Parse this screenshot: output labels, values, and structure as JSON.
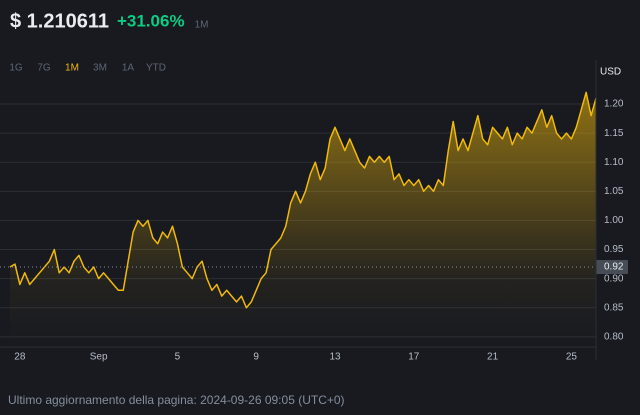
{
  "chart_data": {
    "type": "area",
    "title": "$ 1.210611",
    "change": "+31.06%",
    "period": "1M",
    "periods": [
      "1G",
      "7G",
      "1M",
      "3M",
      "1A",
      "YTD"
    ],
    "selected_period": 2,
    "y_axis_label": "USD",
    "footer": "Ultimo aggiornamento della pagina: 2024-09-26 09:05 (UTC+0)",
    "color": "#f0b90b",
    "grid": true,
    "reference_line": 0.92,
    "ylim": [
      0.786,
      1.2275
    ],
    "yticks": [
      {
        "value": 0.8,
        "label": "0.80"
      },
      0.85,
      {
        "value": 0.9,
        "label": "0.90"
      },
      0.95,
      {
        "value": 1.0,
        "label": "1.00"
      },
      1.05,
      {
        "value": 1.1,
        "label": "1.10"
      },
      1.15,
      {
        "value": 1.2,
        "label": "1.20"
      }
    ],
    "categories": [
      null,
      null,
      "28",
      null,
      null,
      null,
      null,
      null,
      null,
      null,
      null,
      null,
      null,
      null,
      null,
      null,
      null,
      null,
      "Sep",
      null,
      null,
      null,
      null,
      null,
      null,
      null,
      null,
      null,
      null,
      null,
      null,
      null,
      null,
      null,
      "5",
      null,
      null,
      null,
      null,
      null,
      null,
      null,
      null,
      null,
      null,
      null,
      null,
      null,
      null,
      null,
      "9",
      null,
      null,
      null,
      null,
      null,
      null,
      null,
      null,
      null,
      null,
      null,
      null,
      null,
      null,
      null,
      "13",
      null,
      null,
      null,
      null,
      null,
      null,
      null,
      null,
      null,
      null,
      null,
      null,
      null,
      null,
      null,
      "17",
      null,
      null,
      null,
      null,
      null,
      null,
      null,
      null,
      null,
      null,
      null,
      null,
      null,
      null,
      null,
      "21",
      null,
      null,
      null,
      null,
      null,
      null,
      null,
      null,
      null,
      null,
      null,
      null,
      null,
      null,
      null,
      "25",
      null,
      null,
      null,
      null,
      null
    ],
    "values": [
      0.92,
      0.925,
      0.89,
      0.91,
      0.89,
      0.9,
      0.91,
      0.92,
      0.93,
      0.95,
      0.91,
      0.92,
      0.91,
      0.93,
      0.94,
      0.92,
      0.91,
      0.92,
      0.9,
      0.91,
      0.9,
      0.89,
      0.88,
      0.88,
      0.93,
      0.98,
      1.0,
      0.99,
      1.0,
      0.97,
      0.96,
      0.98,
      0.97,
      0.99,
      0.96,
      0.92,
      0.91,
      0.9,
      0.92,
      0.93,
      0.9,
      0.88,
      0.89,
      0.87,
      0.88,
      0.87,
      0.86,
      0.87,
      0.85,
      0.86,
      0.88,
      0.9,
      0.91,
      0.95,
      0.96,
      0.97,
      0.99,
      1.03,
      1.05,
      1.03,
      1.05,
      1.08,
      1.1,
      1.07,
      1.09,
      1.14,
      1.16,
      1.14,
      1.12,
      1.14,
      1.12,
      1.1,
      1.09,
      1.11,
      1.1,
      1.11,
      1.1,
      1.11,
      1.07,
      1.08,
      1.06,
      1.07,
      1.06,
      1.07,
      1.05,
      1.06,
      1.05,
      1.07,
      1.06,
      1.12,
      1.17,
      1.12,
      1.14,
      1.12,
      1.15,
      1.18,
      1.14,
      1.13,
      1.16,
      1.15,
      1.14,
      1.16,
      1.13,
      1.15,
      1.14,
      1.16,
      1.15,
      1.17,
      1.19,
      1.16,
      1.18,
      1.15,
      1.14,
      1.15,
      1.14,
      1.16,
      1.19,
      1.22,
      1.18,
      1.21
    ]
  }
}
